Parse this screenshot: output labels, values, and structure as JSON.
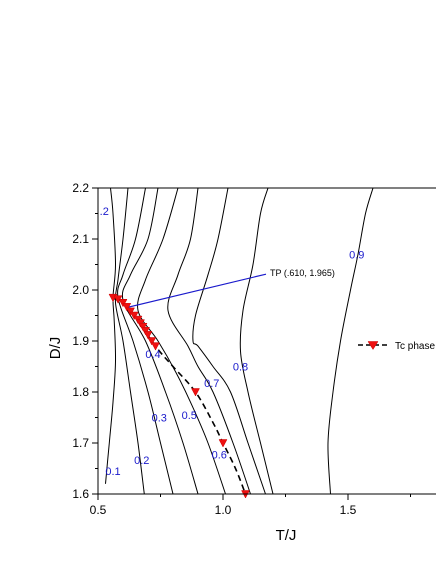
{
  "chart_data": {
    "type": "line",
    "title": "",
    "xlabel": "T/J",
    "ylabel": "D/J",
    "xlim": [
      0.5,
      1.85
    ],
    "ylim": [
      1.6,
      2.2
    ],
    "x_ticks": [
      "0.5",
      "1.0",
      "1.5"
    ],
    "y_ticks": [
      "1.6",
      "1.7",
      "1.8",
      "1.9",
      "2.0",
      "2.1",
      "2.2"
    ],
    "grid": false,
    "contours": [
      {
        "label": "0.1",
        "label_at": [
          0.56,
          1.645
        ],
        "points": [
          [
            0.53,
            1.62
          ],
          [
            0.545,
            1.7
          ],
          [
            0.56,
            1.78
          ],
          [
            0.57,
            1.86
          ],
          [
            0.565,
            1.94
          ],
          [
            0.56,
            1.985
          ],
          [
            0.57,
            2.05
          ],
          [
            0.56,
            2.15
          ],
          [
            0.55,
            2.2
          ]
        ]
      },
      {
        "label": "0.2",
        "label_at": [
          0.675,
          1.667
        ],
        "points": [
          [
            0.685,
            1.6
          ],
          [
            0.66,
            1.7
          ],
          [
            0.63,
            1.8
          ],
          [
            0.6,
            1.9
          ],
          [
            0.57,
            1.975
          ],
          [
            0.58,
            2.02
          ],
          [
            0.6,
            2.1
          ],
          [
            0.62,
            2.2
          ]
        ]
      },
      {
        "label": "0.3",
        "label_at": [
          0.745,
          1.75
        ],
        "points": [
          [
            0.8,
            1.6
          ],
          [
            0.75,
            1.7
          ],
          [
            0.7,
            1.8
          ],
          [
            0.64,
            1.9
          ],
          [
            0.58,
            1.985
          ],
          [
            0.6,
            2.03
          ],
          [
            0.65,
            2.1
          ],
          [
            0.69,
            2.2
          ]
        ]
      },
      {
        "label": "0.4",
        "label_at": [
          0.72,
          1.875
        ],
        "points": [
          [
            0.9,
            1.6
          ],
          [
            0.84,
            1.7
          ],
          [
            0.77,
            1.8
          ],
          [
            0.69,
            1.9
          ],
          [
            0.6,
            1.98
          ],
          [
            0.63,
            2.03
          ],
          [
            0.7,
            2.1
          ],
          [
            0.74,
            2.2
          ]
        ]
      },
      {
        "label": "0.5",
        "label_at": [
          0.865,
          1.755
        ],
        "points": [
          [
            1.01,
            1.6
          ],
          [
            0.94,
            1.7
          ],
          [
            0.87,
            1.78
          ],
          [
            0.81,
            1.84
          ],
          [
            0.74,
            1.9
          ],
          [
            0.66,
            1.96
          ],
          [
            0.69,
            2.02
          ],
          [
            0.76,
            2.1
          ],
          [
            0.82,
            2.2
          ]
        ]
      },
      {
        "label": "0.6",
        "label_at": [
          0.985,
          1.677
        ],
        "points": [
          [
            1.11,
            1.6
          ],
          [
            1.04,
            1.7
          ],
          [
            0.96,
            1.8
          ],
          [
            0.9,
            1.85
          ],
          [
            0.86,
            1.89
          ],
          [
            0.78,
            1.96
          ],
          [
            0.82,
            2.03
          ],
          [
            0.87,
            2.1
          ],
          [
            0.9,
            2.2
          ]
        ]
      },
      {
        "label": "0.7",
        "label_at": [
          0.955,
          1.818
        ],
        "points": [
          [
            1.17,
            1.6
          ],
          [
            1.1,
            1.7
          ],
          [
            1.03,
            1.8
          ],
          [
            0.96,
            1.85
          ],
          [
            0.9,
            1.89
          ],
          [
            0.88,
            1.9
          ],
          [
            0.89,
            1.95
          ],
          [
            0.94,
            2.03
          ],
          [
            0.98,
            2.1
          ],
          [
            1.02,
            2.2
          ]
        ]
      },
      {
        "label": "0.8",
        "label_at": [
          1.07,
          1.85
        ],
        "points": [
          [
            1.2,
            1.6
          ],
          [
            1.15,
            1.7
          ],
          [
            1.1,
            1.8
          ],
          [
            1.07,
            1.88
          ],
          [
            1.08,
            1.96
          ],
          [
            1.12,
            2.05
          ],
          [
            1.15,
            2.15
          ],
          [
            1.18,
            2.2
          ]
        ]
      },
      {
        "label": "0.9",
        "label_at": [
          1.535,
          2.07
        ],
        "points": [
          [
            1.43,
            1.6
          ],
          [
            1.42,
            1.7
          ],
          [
            1.44,
            1.8
          ],
          [
            1.47,
            1.9
          ],
          [
            1.51,
            2.0
          ],
          [
            1.54,
            2.07
          ],
          [
            1.57,
            2.15
          ],
          [
            1.6,
            2.2
          ]
        ]
      },
      {
        "label": ".2",
        "label_at": [
          0.525,
          2.155
        ],
        "points": []
      }
    ],
    "series": [
      {
        "name": "Tc phase l",
        "points": [
          [
            0.56,
            1.985
          ],
          [
            0.58,
            1.982
          ],
          [
            0.6,
            1.975
          ],
          [
            0.615,
            1.967
          ],
          [
            0.63,
            1.958
          ],
          [
            0.645,
            1.95
          ],
          [
            0.66,
            1.942
          ],
          [
            0.67,
            1.935
          ],
          [
            0.68,
            1.928
          ],
          [
            0.69,
            1.92
          ],
          [
            0.7,
            1.912
          ],
          [
            0.715,
            1.9
          ],
          [
            0.73,
            1.89
          ],
          [
            0.89,
            1.8
          ],
          [
            1.0,
            1.7
          ],
          [
            1.09,
            1.6
          ]
        ]
      }
    ],
    "dashed_line": [
      [
        0.56,
        1.985
      ],
      [
        0.63,
        1.96
      ],
      [
        0.73,
        1.89
      ],
      [
        0.8,
        1.85
      ],
      [
        0.89,
        1.8
      ],
      [
        0.96,
        1.74
      ],
      [
        1.0,
        1.7
      ],
      [
        1.05,
        1.65
      ],
      [
        1.09,
        1.6
      ]
    ],
    "annotation": {
      "text": "TP  (.610, 1.965)",
      "point": [
        0.61,
        1.965
      ],
      "text_at": [
        1.2,
        2.033
      ]
    },
    "legend": {
      "position": "right",
      "entries": [
        "Tc phase l"
      ]
    },
    "colors": {
      "contour": "#000000",
      "contour_label": "#1a1acc",
      "marker": "#ee1111",
      "annotation_line": "#1a1acc"
    }
  }
}
